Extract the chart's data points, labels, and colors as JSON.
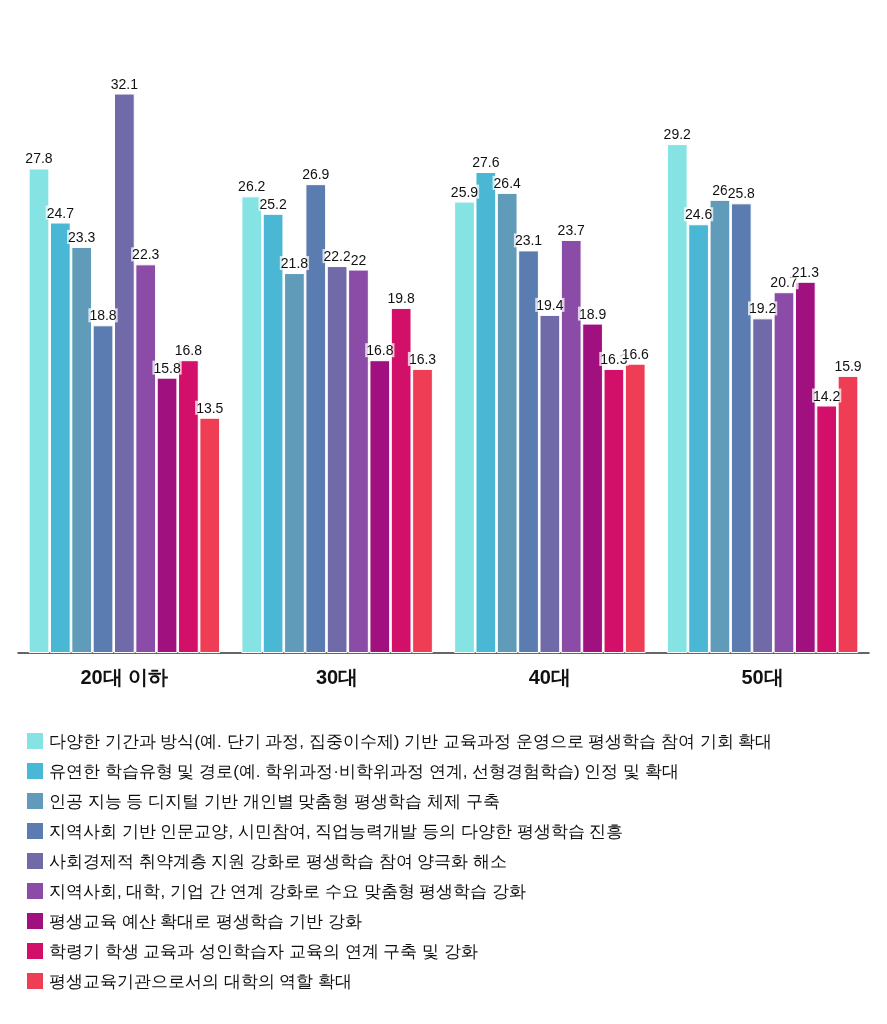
{
  "chart_data": {
    "type": "bar",
    "categories": [
      "20대 이하",
      "30대",
      "40대",
      "50대"
    ],
    "series": [
      {
        "name": "다양한 기간과 방식(예. 단기 과정, 집중이수제) 기반 교육과정 운영으로 평생학습 참여 기회 확대",
        "color": "#86e3e3",
        "values": [
          27.8,
          26.2,
          25.9,
          29.2
        ]
      },
      {
        "name": "유연한 학습유형 및 경로(예. 학위과정·비학위과정 연계, 선형경험학습) 인정 및 확대",
        "color": "#4ab8d4",
        "values": [
          24.7,
          25.2,
          27.6,
          24.6
        ]
      },
      {
        "name": "인공 지능 등 디지털 기반 개인별 맞춤형 평생학습 체제 구축",
        "color": "#609cba",
        "values": [
          23.3,
          21.8,
          26.4,
          26
        ]
      },
      {
        "name": "지역사회 기반 인문교양, 시민참여, 직업능력개발 등의 다양한 평생학습 진흥",
        "color": "#5b7cb0",
        "values": [
          18.8,
          26.9,
          23.1,
          25.8
        ]
      },
      {
        "name": "사회경제적 취약계층 지원 강화로 평생학습 참여 양극화 해소",
        "color": "#716aa8",
        "values": [
          32.1,
          22.2,
          19.4,
          19.2
        ]
      },
      {
        "name": "지역사회, 대학, 기업 간 연계 강화로 수요 맞춤형 평생학습 강화",
        "color": "#8a4ca6",
        "values": [
          22.3,
          22,
          23.7,
          20.7
        ]
      },
      {
        "name": "평생교육 예산 확대로 평생학습 기반 강화",
        "color": "#a0107f",
        "values": [
          15.8,
          16.8,
          18.9,
          21.3
        ]
      },
      {
        "name": "학령기 학생 교육과 성인학습자 교육의 연계 구축 및 강화",
        "color": "#d2106a",
        "values": [
          16.8,
          19.8,
          16.3,
          14.2
        ]
      },
      {
        "name": "평생교육기관으로서의 대학의 역할 확대",
        "color": "#ef3d56",
        "values": [
          13.5,
          16.3,
          16.6,
          15.9
        ]
      }
    ],
    "data_labels": true,
    "legend": "bottom"
  }
}
